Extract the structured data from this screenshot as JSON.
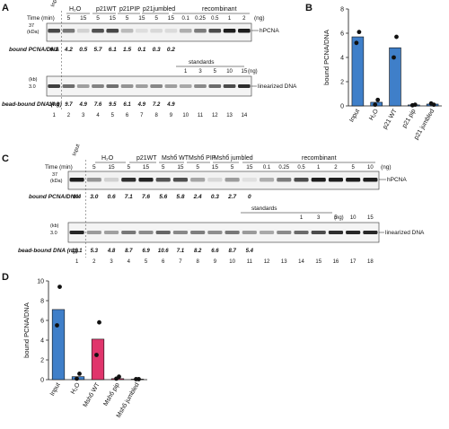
{
  "panels": {
    "A": {
      "letter": "A",
      "time_label": "Time (min)",
      "unit_ng": "(ng)",
      "kda_label": "(kDa)",
      "marker_top": "37",
      "marker_low": "3.0",
      "kb_label": "(kb)",
      "lane_groups": [
        "Input",
        "H₂O",
        "p21WT",
        "p21PIP",
        "p21jumbled",
        "recombinant"
      ],
      "times": [
        "5",
        "15",
        "5",
        "15",
        "5",
        "15",
        "5",
        "15"
      ],
      "recombinant_ng": [
        "0.1",
        "0.25",
        "0.5",
        "1",
        "2"
      ],
      "standards_label": "standards",
      "standards_ng": [
        "1",
        "3",
        "5",
        "10",
        "15"
      ],
      "band_label_top": "hPCNA",
      "band_label_bottom": "linearized DNA",
      "row_label_pcna": "bound PCNA/DNA",
      "pcna_values": [
        "6.1",
        "4.2",
        "0.5",
        "5.7",
        "6.1",
        "1.5",
        "0.1",
        "0.3",
        "0.2"
      ],
      "row_label_dna": "bead-bound DNA (ng)",
      "dna_values": [
        "14.3",
        "9.7",
        "4.9",
        "7.6",
        "9.5",
        "6.1",
        "4.9",
        "7.2",
        "4.9"
      ],
      "lane_numbers": [
        "1",
        "2",
        "3",
        "4",
        "5",
        "6",
        "7",
        "8",
        "9",
        "10",
        "11",
        "12",
        "13",
        "14"
      ]
    },
    "B": {
      "letter": "B",
      "ylabel": "bound PCNA/DNA",
      "yticks": [
        "0",
        "2",
        "4",
        "6",
        "8"
      ],
      "categories": [
        "Input",
        "H₂O",
        "p21 WT",
        "p21 pip",
        "p21 jumbled"
      ]
    },
    "C": {
      "letter": "C",
      "time_label": "Time (min)",
      "unit_ng": "(ng)",
      "kda_label": "(kDa)",
      "marker_top": "37",
      "marker_low": "3.0",
      "kb_label": "(kb)",
      "lane_groups": [
        "Input",
        "H₂O",
        "p21WT",
        "Mshб WT",
        "Mshб PIP",
        "Mshб jumbled",
        "recombinant"
      ],
      "times": [
        "5",
        "15",
        "5",
        "15",
        "5",
        "15",
        "5",
        "15",
        "5",
        "15"
      ],
      "recombinant_ng": [
        "0.1",
        "0.25",
        "0.5",
        "1",
        "2",
        "5",
        "10"
      ],
      "standards_label": "standards",
      "standards_ng": [
        "1",
        "3",
        "5",
        "10",
        "15"
      ],
      "band_label_top": "hPCNA",
      "band_label_bottom": "linearized DNA",
      "row_label_pcna": "bound PCNA/DNA",
      "pcna_values": [
        "9.4",
        "3.0",
        "0.6",
        "7.1",
        "7.6",
        "5.6",
        "5.8",
        "2.4",
        "0.3",
        "2.7",
        "0"
      ],
      "row_label_dna": "bead-bound DNA (ng)",
      "dna_values": [
        "19.1",
        "5.3",
        "4.8",
        "8.7",
        "6.9",
        "10.6",
        "7.1",
        "8.2",
        "6.6",
        "8.7",
        "5.4"
      ],
      "lane_numbers": [
        "1",
        "2",
        "3",
        "4",
        "5",
        "6",
        "7",
        "8",
        "9",
        "10",
        "11",
        "12",
        "13",
        "14",
        "15",
        "16",
        "17",
        "18"
      ]
    },
    "D": {
      "letter": "D",
      "ylabel": "bound PCNA/DNA",
      "yticks": [
        "0",
        "2",
        "4",
        "6",
        "8",
        "10"
      ],
      "categories": [
        "Input",
        "H₂O",
        "Mshб WT",
        "Mshб pip",
        "Mshб jumbled"
      ]
    }
  },
  "chart_data": [
    {
      "type": "bar",
      "panel": "B",
      "categories": [
        "Input",
        "H₂O",
        "p21 WT",
        "p21 pip",
        "p21 jumbled"
      ],
      "values": [
        5.7,
        0.3,
        4.8,
        0.08,
        0.15
      ],
      "points": [
        [
          6.1,
          5.2
        ],
        [
          0.5,
          0.1
        ],
        [
          5.7,
          4.0
        ],
        [
          0.1,
          0.05
        ],
        [
          0.1,
          0.2
        ]
      ],
      "colors": [
        "#3f7fc9",
        "#3f7fc9",
        "#3f7fc9",
        "#3f7fc9",
        "#3f7fc9"
      ],
      "ylabel": "bound PCNA/DNA",
      "ylim": [
        0,
        8
      ]
    },
    {
      "type": "bar",
      "panel": "D",
      "categories": [
        "Input",
        "H₂O",
        "Mshб WT",
        "Mshб pip",
        "Mshб jumbled"
      ],
      "values": [
        7.1,
        0.3,
        4.1,
        0.1,
        0.05
      ],
      "points": [
        [
          9.4,
          5.5
        ],
        [
          0.6,
          0.1
        ],
        [
          5.8,
          2.5
        ],
        [
          0.3,
          0.1
        ],
        [
          0.05,
          0.05
        ]
      ],
      "colors": [
        "#3f7fc9",
        "#3f7fc9",
        "#e0356c",
        "#e0356c",
        "#e0356c"
      ],
      "ylabel": "bound PCNA/DNA",
      "ylim": [
        0,
        10
      ]
    }
  ]
}
